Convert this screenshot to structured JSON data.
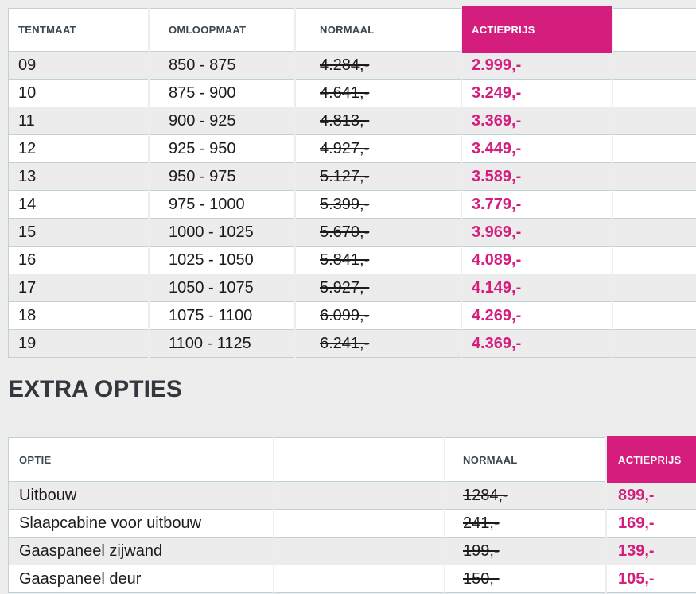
{
  "colors": {
    "accent_pink": "#d51d7d",
    "page_background": "#ededed",
    "row_alt_background": "#ececec",
    "row_background": "#ffffff",
    "border": "#bfd1d8",
    "column_header_text": "#3c4650",
    "body_text": "#1b1b1b",
    "section_heading_text": "#33383f"
  },
  "price_table": {
    "columns": {
      "tentmaat": "TENTMAAT",
      "omloopmaat": "OMLOOPMAAT",
      "normaal": "NORMAAL",
      "actieprijs": "ACTIEPRIJS"
    },
    "rows": [
      {
        "tentmaat": "09",
        "omloopmaat": "850 - 875",
        "normaal": "4.284,-",
        "actieprijs": "2.999,-"
      },
      {
        "tentmaat": "10",
        "omloopmaat": "875 - 900",
        "normaal": "4.641,-",
        "actieprijs": "3.249,-"
      },
      {
        "tentmaat": "11",
        "omloopmaat": "900 - 925",
        "normaal": "4.813,-",
        "actieprijs": "3.369,-"
      },
      {
        "tentmaat": "12",
        "omloopmaat": "925 - 950",
        "normaal": "4.927,-",
        "actieprijs": "3.449,-"
      },
      {
        "tentmaat": "13",
        "omloopmaat": "950 - 975",
        "normaal": "5.127,-",
        "actieprijs": "3.589,-"
      },
      {
        "tentmaat": "14",
        "omloopmaat": "975 - 1000",
        "normaal": "5.399,-",
        "actieprijs": "3.779,-"
      },
      {
        "tentmaat": "15",
        "omloopmaat": "1000 - 1025",
        "normaal": "5.670,-",
        "actieprijs": "3.969,-"
      },
      {
        "tentmaat": "16",
        "omloopmaat": "1025 - 1050",
        "normaal": "5.841,-",
        "actieprijs": "4.089,-"
      },
      {
        "tentmaat": "17",
        "omloopmaat": "1050 - 1075",
        "normaal": "5.927,-",
        "actieprijs": "4.149,-"
      },
      {
        "tentmaat": "18",
        "omloopmaat": "1075 - 1100",
        "normaal": "6.099,-",
        "actieprijs": "4.269,-"
      },
      {
        "tentmaat": "19",
        "omloopmaat": "1100 - 1125",
        "normaal": "6.241,-",
        "actieprijs": "4.369,-"
      }
    ]
  },
  "extra_options_section": {
    "heading": "EXTRA OPTIES",
    "table": {
      "columns": {
        "optie": "OPTIE",
        "normaal": "NORMAAL",
        "actieprijs": "ACTIEPRIJS"
      },
      "rows": [
        {
          "optie": "Uitbouw",
          "normaal": "1284,-",
          "actieprijs": "899,-"
        },
        {
          "optie": "Slaapcabine voor uitbouw",
          "normaal": "241,-",
          "actieprijs": "169,-"
        },
        {
          "optie": "Gaaspaneel zijwand",
          "normaal": "199,-",
          "actieprijs": "139,-"
        },
        {
          "optie": "Gaaspaneel deur",
          "normaal": "150,-",
          "actieprijs": "105,-"
        }
      ]
    }
  }
}
